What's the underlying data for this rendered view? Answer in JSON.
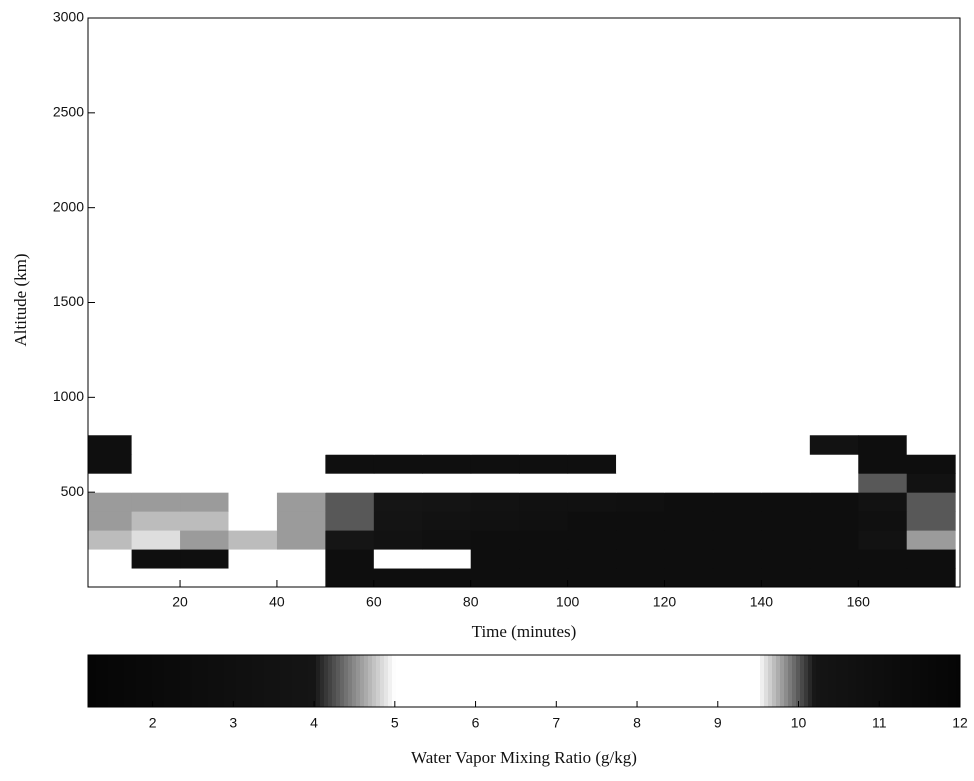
{
  "chart_data": {
    "type": "heatmap",
    "x_label": "Time (minutes)",
    "y_label": "Altitude (km)",
    "colorbar_label": "Water Vapor Mixing Ratio (g/kg)",
    "x": [
      5,
      15,
      25,
      35,
      45,
      55,
      65,
      75,
      85,
      95,
      105,
      115,
      125,
      135,
      145,
      155,
      165,
      175
    ],
    "y": [
      50,
      150,
      250,
      350,
      450,
      550,
      650,
      750
    ],
    "z": [
      [
        7,
        7,
        7,
        7,
        7,
        11,
        11,
        11,
        11,
        11,
        11,
        11,
        11,
        11,
        11,
        11,
        11,
        11
      ],
      [
        7,
        3,
        3,
        7,
        7,
        11,
        8,
        8,
        11,
        11,
        11,
        11,
        11,
        11,
        11,
        11,
        11,
        11
      ],
      [
        9.7,
        9.6,
        9.8,
        9.7,
        9.8,
        10.2,
        10.5,
        10.8,
        11,
        11,
        11,
        11,
        11,
        11,
        11,
        11,
        10.5,
        9.8
      ],
      [
        9.8,
        9.7,
        9.7,
        9.5,
        9.8,
        10,
        10.3,
        10.5,
        10.6,
        10.8,
        11,
        11,
        11,
        11,
        11,
        11,
        10.8,
        10
      ],
      [
        9.8,
        9.8,
        9.8,
        9.5,
        9.8,
        10,
        10.2,
        10.3,
        10.5,
        10.6,
        10.7,
        10.8,
        11,
        11,
        11,
        11,
        10.5,
        10
      ],
      [
        8,
        8,
        9,
        9,
        7,
        7,
        8,
        8,
        8,
        8,
        8.5,
        9,
        9,
        9,
        9.5,
        9.5,
        10,
        10.5
      ],
      [
        3,
        7,
        7,
        7,
        7,
        3,
        3,
        3,
        3,
        3,
        3,
        7,
        7,
        7,
        7,
        8,
        11,
        11
      ],
      [
        3,
        7,
        7,
        7,
        7,
        7,
        7,
        7,
        7,
        7,
        7,
        7,
        7,
        7,
        7,
        10.5,
        11,
        7
      ]
    ],
    "cell_width": 10,
    "cell_height": 100,
    "xlim": [
      1,
      181
    ],
    "xticks": [
      20,
      40,
      60,
      80,
      100,
      120,
      140,
      160
    ],
    "ylim": [
      0,
      3000
    ],
    "yticks": [
      500,
      1000,
      1500,
      2000,
      2500,
      3000
    ],
    "clim": [
      1.2,
      12
    ],
    "cticks": [
      2,
      3,
      4,
      5,
      6,
      7,
      8,
      9,
      10,
      11,
      12
    ],
    "colormap_stops": [
      1.2,
      4,
      5,
      9.5,
      10.2,
      12
    ],
    "colormap_colors": [
      "#050505",
      "#151515",
      "#ffffff",
      "#ffffff",
      "#151515",
      "#050505"
    ]
  }
}
